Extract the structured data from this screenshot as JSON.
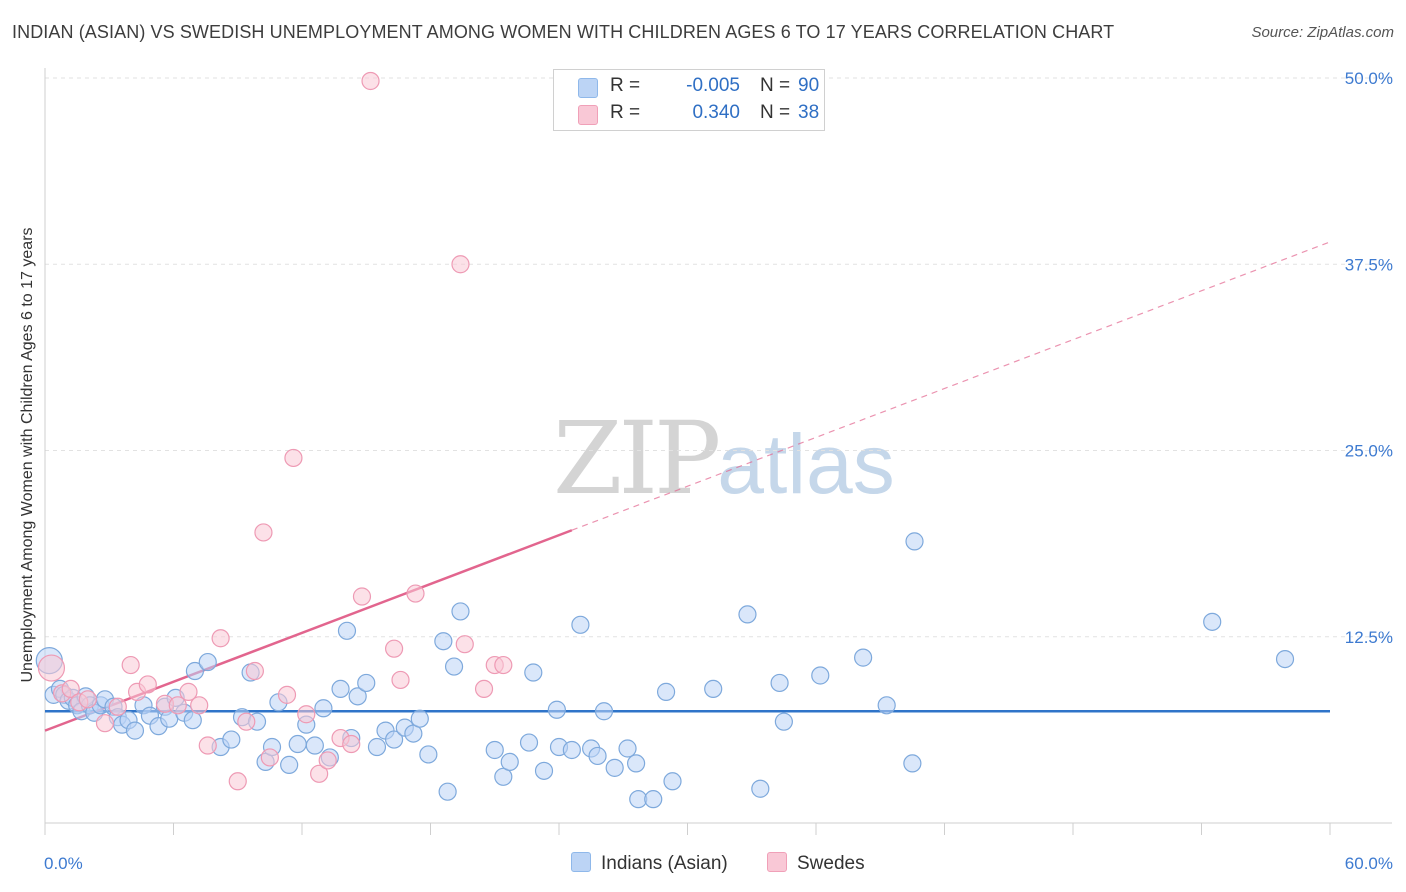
{
  "title": "INDIAN (ASIAN) VS SWEDISH UNEMPLOYMENT AMONG WOMEN WITH CHILDREN AGES 6 TO 17 YEARS CORRELATION CHART",
  "source": "Source: ZipAtlas.com",
  "watermark": {
    "part1": "ZIP",
    "part2": "atlas"
  },
  "legend": {
    "series": [
      {
        "r_label": "R =",
        "r_value": "-0.005",
        "n_label": "N =",
        "n_value": "90",
        "color": "#8fb8ea",
        "fill": "#bcd4f5"
      },
      {
        "r_label": "R =",
        "r_value": "0.340",
        "n_label": "N =",
        "n_value": "38",
        "color": "#f0a0b8",
        "fill": "#f9c8d6"
      }
    ]
  },
  "bottom_legend": {
    "items": [
      "Indians (Asian)",
      "Swedes"
    ]
  },
  "colors": {
    "blue_stroke": "#7ea9dc",
    "blue_fill": "#bcd4f5",
    "blue_line": "#2f74c9",
    "pink_stroke": "#ee9ab4",
    "pink_fill": "#f9c8d6",
    "pink_line": "#e2658e",
    "grid": "#e2e2e2",
    "axis_label": "#3d7ad0"
  },
  "chart_data": {
    "type": "scatter",
    "title": "INDIAN (ASIAN) VS SWEDISH UNEMPLOYMENT AMONG WOMEN WITH CHILDREN AGES 6 TO 17 YEARS CORRELATION CHART",
    "xlabel": "",
    "ylabel": "Unemployment Among Women with Children Ages 6 to 17 years",
    "xlim": [
      0,
      60
    ],
    "ylim": [
      0,
      50
    ],
    "x_tick_labels": {
      "min": "0.0%",
      "max": "60.0%"
    },
    "y_ticks": [
      12.5,
      25.0,
      37.5,
      50.0
    ],
    "y_tick_labels": [
      "12.5%",
      "25.0%",
      "37.5%",
      "50.0%"
    ],
    "series": [
      {
        "name": "Indians (Asian)",
        "r": -0.005,
        "n": 90,
        "trend": {
          "x0": 0,
          "y0": 7.5,
          "x1": 60,
          "y1": 7.5,
          "dashed_from": null
        },
        "points": [
          [
            0.2,
            10.9
          ],
          [
            0.4,
            8.6
          ],
          [
            0.7,
            9.0
          ],
          [
            0.9,
            8.6
          ],
          [
            1.1,
            8.2
          ],
          [
            1.3,
            8.4
          ],
          [
            1.5,
            7.9
          ],
          [
            1.7,
            7.5
          ],
          [
            1.9,
            8.5
          ],
          [
            2.1,
            7.9
          ],
          [
            2.3,
            7.4
          ],
          [
            2.6,
            7.9
          ],
          [
            2.8,
            8.3
          ],
          [
            3.2,
            7.8
          ],
          [
            3.4,
            7.1
          ],
          [
            3.6,
            6.6
          ],
          [
            3.9,
            6.9
          ],
          [
            4.2,
            6.2
          ],
          [
            4.6,
            7.9
          ],
          [
            4.9,
            7.2
          ],
          [
            5.3,
            6.5
          ],
          [
            5.6,
            7.8
          ],
          [
            5.8,
            7.0
          ],
          [
            6.1,
            8.4
          ],
          [
            6.5,
            7.4
          ],
          [
            6.9,
            6.9
          ],
          [
            7.0,
            10.2
          ],
          [
            7.6,
            10.8
          ],
          [
            8.2,
            5.1
          ],
          [
            8.7,
            5.6
          ],
          [
            9.2,
            7.1
          ],
          [
            9.6,
            10.1
          ],
          [
            9.9,
            6.8
          ],
          [
            10.3,
            4.1
          ],
          [
            10.6,
            5.1
          ],
          [
            10.9,
            8.1
          ],
          [
            11.4,
            3.9
          ],
          [
            11.8,
            5.3
          ],
          [
            12.2,
            6.6
          ],
          [
            12.6,
            5.2
          ],
          [
            13.0,
            7.7
          ],
          [
            13.3,
            4.4
          ],
          [
            13.8,
            9.0
          ],
          [
            14.1,
            12.9
          ],
          [
            14.3,
            5.7
          ],
          [
            14.6,
            8.5
          ],
          [
            15.0,
            9.4
          ],
          [
            15.5,
            5.1
          ],
          [
            15.9,
            6.2
          ],
          [
            16.3,
            5.6
          ],
          [
            16.8,
            6.4
          ],
          [
            17.2,
            6.0
          ],
          [
            17.5,
            7.0
          ],
          [
            17.9,
            4.6
          ],
          [
            18.6,
            12.2
          ],
          [
            18.8,
            2.1
          ],
          [
            19.1,
            10.5
          ],
          [
            19.4,
            14.2
          ],
          [
            21.0,
            4.9
          ],
          [
            21.4,
            3.1
          ],
          [
            21.7,
            4.1
          ],
          [
            22.6,
            5.4
          ],
          [
            22.8,
            10.1
          ],
          [
            23.3,
            3.5
          ],
          [
            23.9,
            7.6
          ],
          [
            24.0,
            5.1
          ],
          [
            24.6,
            4.9
          ],
          [
            25.0,
            13.3
          ],
          [
            25.5,
            5.0
          ],
          [
            25.8,
            4.5
          ],
          [
            26.1,
            7.5
          ],
          [
            26.6,
            3.7
          ],
          [
            27.2,
            5.0
          ],
          [
            27.6,
            4.0
          ],
          [
            27.7,
            1.6
          ],
          [
            28.4,
            1.6
          ],
          [
            29.0,
            8.8
          ],
          [
            29.3,
            2.8
          ],
          [
            31.2,
            9.0
          ],
          [
            32.8,
            14.0
          ],
          [
            33.4,
            2.3
          ],
          [
            34.3,
            9.4
          ],
          [
            34.5,
            6.8
          ],
          [
            36.2,
            9.9
          ],
          [
            38.2,
            11.1
          ],
          [
            39.3,
            7.9
          ],
          [
            40.5,
            4.0
          ],
          [
            40.6,
            18.9
          ],
          [
            54.5,
            13.5
          ],
          [
            57.9,
            11.0
          ]
        ]
      },
      {
        "name": "Swedes",
        "r": 0.34,
        "n": 38,
        "trend": {
          "x0": 0,
          "y0": 6.2,
          "x1": 60,
          "y1": 39.0,
          "dashed_from": 24.6
        },
        "points": [
          [
            0.3,
            10.4
          ],
          [
            0.8,
            8.7
          ],
          [
            1.2,
            9.0
          ],
          [
            1.6,
            8.1
          ],
          [
            2.0,
            8.3
          ],
          [
            2.8,
            6.7
          ],
          [
            3.4,
            7.8
          ],
          [
            4.0,
            10.6
          ],
          [
            4.3,
            8.8
          ],
          [
            4.8,
            9.3
          ],
          [
            5.6,
            8.0
          ],
          [
            6.2,
            7.9
          ],
          [
            6.7,
            8.8
          ],
          [
            7.2,
            7.9
          ],
          [
            7.6,
            5.2
          ],
          [
            8.2,
            12.4
          ],
          [
            9.0,
            2.8
          ],
          [
            9.4,
            6.8
          ],
          [
            9.8,
            10.2
          ],
          [
            10.2,
            19.5
          ],
          [
            10.5,
            4.4
          ],
          [
            11.3,
            8.6
          ],
          [
            11.6,
            24.5
          ],
          [
            12.2,
            7.3
          ],
          [
            12.8,
            3.3
          ],
          [
            13.2,
            4.2
          ],
          [
            13.8,
            5.7
          ],
          [
            14.3,
            5.3
          ],
          [
            14.8,
            15.2
          ],
          [
            15.2,
            49.8
          ],
          [
            16.3,
            11.7
          ],
          [
            16.6,
            9.6
          ],
          [
            17.3,
            15.4
          ],
          [
            19.4,
            37.5
          ],
          [
            19.6,
            12.0
          ],
          [
            21.0,
            10.6
          ],
          [
            21.4,
            10.6
          ],
          [
            20.5,
            9.0
          ]
        ]
      }
    ]
  }
}
